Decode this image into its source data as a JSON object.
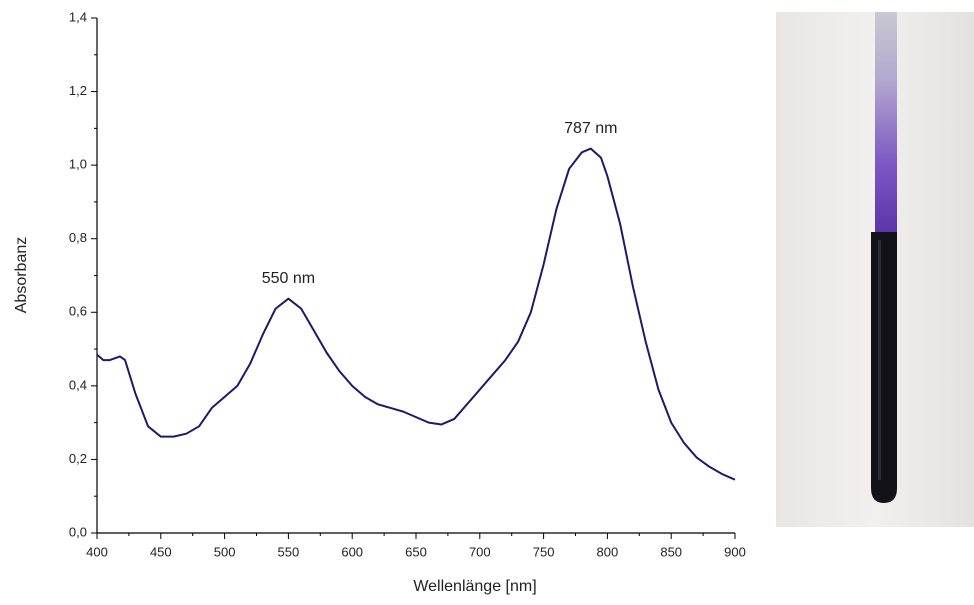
{
  "chart_data": {
    "type": "line",
    "x_label": "Wellenlänge [nm]",
    "y_label": "Absorbanz",
    "color": "#1c1a6b",
    "x": [
      400,
      405,
      410,
      418,
      422,
      430,
      440,
      450,
      460,
      470,
      480,
      490,
      500,
      510,
      520,
      530,
      540,
      550,
      560,
      570,
      580,
      590,
      600,
      610,
      620,
      630,
      640,
      650,
      660,
      670,
      680,
      690,
      700,
      710,
      720,
      730,
      740,
      750,
      760,
      770,
      780,
      787,
      795,
      800,
      810,
      820,
      830,
      840,
      850,
      860,
      870,
      880,
      890,
      900
    ],
    "values": [
      0.485,
      0.47,
      0.47,
      0.48,
      0.47,
      0.38,
      0.29,
      0.262,
      0.262,
      0.27,
      0.29,
      0.34,
      0.37,
      0.4,
      0.46,
      0.54,
      0.61,
      0.637,
      0.61,
      0.55,
      0.49,
      0.44,
      0.4,
      0.37,
      0.35,
      0.34,
      0.33,
      0.315,
      0.3,
      0.295,
      0.31,
      0.35,
      0.39,
      0.43,
      0.47,
      0.52,
      0.6,
      0.73,
      0.88,
      0.99,
      1.035,
      1.045,
      1.02,
      0.97,
      0.84,
      0.67,
      0.52,
      0.39,
      0.3,
      0.245,
      0.205,
      0.18,
      0.16,
      0.145
    ],
    "xlim": [
      400,
      900
    ],
    "ylim": [
      0,
      1.4
    ],
    "xticks": [
      400,
      450,
      500,
      550,
      600,
      650,
      700,
      750,
      800,
      850,
      900
    ],
    "yticks": [
      {
        "value": 0,
        "label": "0,0"
      },
      {
        "value": 0.2,
        "label": "0,2"
      },
      {
        "value": 0.4,
        "label": "0,4"
      },
      {
        "value": 0.6,
        "label": "0,6"
      },
      {
        "value": 0.8,
        "label": "0,8"
      },
      {
        "value": 1.0,
        "label": "1,0"
      },
      {
        "value": 1.2,
        "label": "1,2"
      },
      {
        "value": 1.4,
        "label": "1,4"
      }
    ],
    "annotations": [
      {
        "text": "550 nm",
        "x": 550
      },
      {
        "text": "787 nm",
        "x": 787
      }
    ],
    "grid": false
  }
}
